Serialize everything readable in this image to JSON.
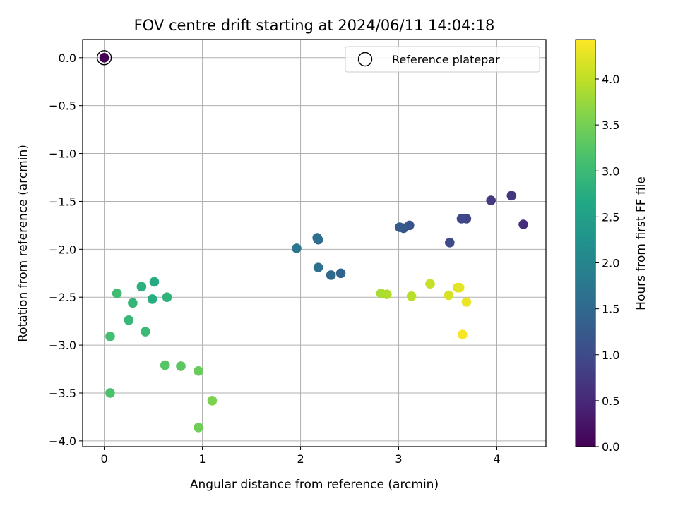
{
  "chart_data": {
    "type": "scatter",
    "title": "FOV centre drift starting at 2024/06/11 14:04:18",
    "xlabel": "Angular distance from reference (arcmin)",
    "ylabel": "Rotation from reference (arcmin)",
    "xlim": [
      -0.22,
      4.5
    ],
    "ylim": [
      -4.06,
      0.19
    ],
    "xticks": [
      0,
      1,
      2,
      3,
      4
    ],
    "yticks": [
      0.0,
      -0.5,
      -1.0,
      -1.5,
      -2.0,
      -2.5,
      -3.0,
      -3.5,
      -4.0
    ],
    "grid": true,
    "legend": {
      "position": "top-right",
      "entries": [
        "Reference platepar"
      ]
    },
    "colorbar": {
      "label": "Hours from first FF file",
      "colormap": "viridis",
      "range": [
        0.0,
        4.43
      ],
      "ticks": [
        0.0,
        0.5,
        1.0,
        1.5,
        2.0,
        2.5,
        3.0,
        3.5,
        4.0
      ]
    },
    "reference_point": {
      "x": 0.0,
      "y": 0.0,
      "hours": 0.0
    },
    "points": [
      {
        "x": 4.27,
        "y": -1.74,
        "hours": 0.6
      },
      {
        "x": 4.15,
        "y": -1.44,
        "hours": 0.7
      },
      {
        "x": 3.94,
        "y": -1.49,
        "hours": 0.75
      },
      {
        "x": 3.69,
        "y": -1.68,
        "hours": 0.9
      },
      {
        "x": 3.64,
        "y": -1.68,
        "hours": 0.95
      },
      {
        "x": 3.52,
        "y": -1.93,
        "hours": 1.0
      },
      {
        "x": 3.11,
        "y": -1.75,
        "hours": 1.15
      },
      {
        "x": 3.05,
        "y": -1.78,
        "hours": 1.2
      },
      {
        "x": 3.01,
        "y": -1.77,
        "hours": 1.25
      },
      {
        "x": 2.41,
        "y": -2.25,
        "hours": 1.4
      },
      {
        "x": 2.31,
        "y": -2.27,
        "hours": 1.5
      },
      {
        "x": 2.18,
        "y": -1.9,
        "hours": 1.55
      },
      {
        "x": 2.17,
        "y": -1.88,
        "hours": 1.6
      },
      {
        "x": 2.18,
        "y": -2.19,
        "hours": 1.65
      },
      {
        "x": 1.96,
        "y": -1.99,
        "hours": 1.75
      },
      {
        "x": 0.51,
        "y": -2.34,
        "hours": 2.7
      },
      {
        "x": 0.49,
        "y": -2.52,
        "hours": 2.75
      },
      {
        "x": 0.64,
        "y": -2.5,
        "hours": 2.85
      },
      {
        "x": 0.38,
        "y": -2.39,
        "hours": 2.8
      },
      {
        "x": 0.29,
        "y": -2.56,
        "hours": 2.9
      },
      {
        "x": 0.25,
        "y": -2.74,
        "hours": 2.95
      },
      {
        "x": 0.42,
        "y": -2.86,
        "hours": 3.0
      },
      {
        "x": 0.13,
        "y": -2.46,
        "hours": 3.05
      },
      {
        "x": 0.06,
        "y": -2.91,
        "hours": 3.1
      },
      {
        "x": 0.06,
        "y": -3.5,
        "hours": 3.15
      },
      {
        "x": 0.62,
        "y": -3.21,
        "hours": 3.25
      },
      {
        "x": 0.78,
        "y": -3.22,
        "hours": 3.3
      },
      {
        "x": 0.96,
        "y": -3.27,
        "hours": 3.4
      },
      {
        "x": 0.96,
        "y": -3.86,
        "hours": 3.45
      },
      {
        "x": 1.1,
        "y": -3.58,
        "hours": 3.55
      },
      {
        "x": 2.82,
        "y": -2.46,
        "hours": 3.85
      },
      {
        "x": 2.88,
        "y": -2.47,
        "hours": 3.9
      },
      {
        "x": 3.13,
        "y": -2.49,
        "hours": 3.95
      },
      {
        "x": 3.32,
        "y": -2.36,
        "hours": 4.05
      },
      {
        "x": 3.51,
        "y": -2.48,
        "hours": 4.15
      },
      {
        "x": 3.6,
        "y": -2.4,
        "hours": 4.2
      },
      {
        "x": 3.62,
        "y": -2.4,
        "hours": 4.25
      },
      {
        "x": 3.69,
        "y": -2.55,
        "hours": 4.3
      },
      {
        "x": 3.65,
        "y": -2.89,
        "hours": 4.38
      }
    ]
  }
}
